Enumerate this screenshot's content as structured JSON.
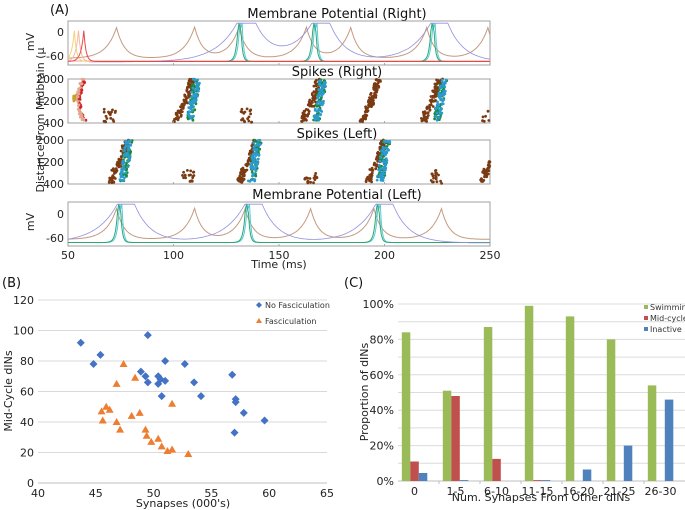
{
  "panel_labels": {
    "a": "(A)",
    "b": "(B)",
    "c": "(C)"
  },
  "chart_data": [
    {
      "id": "A",
      "type": "line",
      "subplots": [
        {
          "title": "Membrane Potential (Right)",
          "ylabel": "mV",
          "yticks": [
            "0",
            "-60"
          ],
          "ylim": [
            -70,
            30
          ]
        },
        {
          "title": "Spikes (Right)",
          "type": "scatter",
          "yticks": [
            "2000",
            "1200",
            "400"
          ],
          "ylim": [
            400,
            2000
          ]
        },
        {
          "title": "Spikes (Left)",
          "type": "scatter",
          "yticks": [
            "2000",
            "1200",
            "400"
          ],
          "ylim": [
            400,
            2000
          ]
        },
        {
          "title": "Membrane Potential (Left)",
          "ylabel": "mV",
          "yticks": [
            "0",
            "-60"
          ],
          "ylim": [
            -70,
            30
          ]
        }
      ],
      "shared_ylabel": "Distance From Midbrain (μ",
      "xlabel": "Time (ms)",
      "xticks": [
        "50",
        "100",
        "150",
        "200",
        "250"
      ],
      "xlim": [
        50,
        250
      ],
      "right_mp": {
        "brown_peaks": [
          73,
          110,
          131,
          163,
          184,
          220,
          249
        ],
        "cyan_peaks": [
          131.5,
          132.5,
          167,
          168,
          223,
          224
        ],
        "init_peaks": [
          [
            53,
            "#f6d27a"
          ],
          [
            55,
            "#f5b8a0"
          ],
          [
            57.5,
            "#e8474a"
          ]
        ]
      },
      "left_mp": {
        "brown_peaks": [
          73,
          110,
          134,
          165,
          195,
          227
        ],
        "cyan_peaks": [
          74.5,
          75.5,
          135,
          136,
          197,
          198
        ]
      },
      "right_spikes_bursts": [
        {
          "t": 58,
          "color": "#d42020",
          "kind": "arc"
        },
        {
          "t": 57,
          "color": "#e0a890",
          "kind": "arc"
        },
        {
          "t": 53,
          "color": "#c9a030",
          "kind": "blob"
        },
        {
          "t": 70,
          "color": "#7a3a12",
          "kind": "low"
        },
        {
          "t": 103,
          "color": "#7a3a12",
          "kind": "sweep"
        },
        {
          "t": 108,
          "color": "#1a8a3a",
          "kind": "cluster"
        },
        {
          "t": 108,
          "color": "#2a9ad0",
          "kind": "cluster"
        },
        {
          "t": 135,
          "color": "#7a3a12",
          "kind": "low"
        },
        {
          "t": 163,
          "color": "#7a3a12",
          "kind": "sweep"
        },
        {
          "t": 168,
          "color": "#1a8a3a",
          "kind": "cluster"
        },
        {
          "t": 168,
          "color": "#2a9ad0",
          "kind": "cluster"
        },
        {
          "t": 191,
          "color": "#7a3a12",
          "kind": "sweep"
        },
        {
          "t": 220,
          "color": "#7a3a12",
          "kind": "sweep"
        },
        {
          "t": 225,
          "color": "#1a8a3a",
          "kind": "cluster"
        },
        {
          "t": 225,
          "color": "#2a9ad0",
          "kind": "cluster"
        },
        {
          "t": 249,
          "color": "#7a3a12",
          "kind": "low"
        }
      ],
      "left_spikes_bursts": [
        {
          "t": 72,
          "color": "#7a3a12",
          "kind": "sweep"
        },
        {
          "t": 76,
          "color": "#1a8a3a",
          "kind": "cluster"
        },
        {
          "t": 76,
          "color": "#2a9ad0",
          "kind": "cluster"
        },
        {
          "t": 107,
          "color": "#7a3a12",
          "kind": "low"
        },
        {
          "t": 133,
          "color": "#7a3a12",
          "kind": "sweep"
        },
        {
          "t": 137,
          "color": "#1a8a3a",
          "kind": "cluster"
        },
        {
          "t": 137,
          "color": "#2a9ad0",
          "kind": "cluster"
        },
        {
          "t": 165,
          "color": "#7a3a12",
          "kind": "low"
        },
        {
          "t": 194,
          "color": "#7a3a12",
          "kind": "sweep"
        },
        {
          "t": 198,
          "color": "#1a8a3a",
          "kind": "cluster"
        },
        {
          "t": 198,
          "color": "#2a9ad0",
          "kind": "cluster"
        },
        {
          "t": 225,
          "color": "#7a3a12",
          "kind": "low"
        },
        {
          "t": 248,
          "color": "#7a3a12",
          "kind": "sweep"
        }
      ]
    },
    {
      "id": "B",
      "type": "scatter",
      "title": "",
      "xlabel": "Synapses (000's)",
      "ylabel": "Mid-Cycle dINs",
      "xlim": [
        40,
        65
      ],
      "ylim": [
        0,
        120
      ],
      "xticks": [
        40,
        45,
        50,
        55,
        60,
        65
      ],
      "yticks": [
        0,
        20,
        40,
        60,
        80,
        100,
        120
      ],
      "grid": true,
      "legend": "top-right",
      "series": [
        {
          "name": "No Fasciculation",
          "marker": "diamond",
          "color": "#4472c4",
          "points": [
            [
              43.7,
              92
            ],
            [
              44.8,
              78
            ],
            [
              45.4,
              84
            ],
            [
              48.9,
              73
            ],
            [
              49.3,
              70
            ],
            [
              49.5,
              66
            ],
            [
              49.5,
              97
            ],
            [
              50.4,
              65
            ],
            [
              50.4,
              70
            ],
            [
              50.6,
              68
            ],
            [
              50.7,
              57
            ],
            [
              51.0,
              67
            ],
            [
              51.0,
              80
            ],
            [
              52.7,
              78
            ],
            [
              53.5,
              66
            ],
            [
              54.1,
              57
            ],
            [
              56.8,
              71
            ],
            [
              57.0,
              33
            ],
            [
              57.1,
              55
            ],
            [
              57.1,
              53
            ],
            [
              57.8,
              46
            ],
            [
              59.6,
              41
            ]
          ]
        },
        {
          "name": "Fasciculation",
          "marker": "triangle",
          "color": "#ed7d31",
          "points": [
            [
              45.5,
              47
            ],
            [
              45.6,
              41
            ],
            [
              45.9,
              50
            ],
            [
              46.2,
              48
            ],
            [
              46.8,
              65
            ],
            [
              46.8,
              40
            ],
            [
              47.1,
              35
            ],
            [
              47.4,
              78
            ],
            [
              48.1,
              44
            ],
            [
              48.4,
              69
            ],
            [
              48.8,
              46
            ],
            [
              49.3,
              35
            ],
            [
              49.4,
              31
            ],
            [
              49.8,
              27
            ],
            [
              50.4,
              29
            ],
            [
              50.7,
              24
            ],
            [
              51.2,
              21
            ],
            [
              51.6,
              22
            ],
            [
              51.6,
              52
            ],
            [
              53.0,
              19
            ]
          ]
        }
      ]
    },
    {
      "id": "C",
      "type": "bar",
      "xlabel": "Num. Synapses From Other dINs",
      "ylabel": "Proportion of dINs",
      "categories": [
        "0",
        "1-5",
        "6-10",
        "11-15",
        "16-20",
        "21-25",
        "26-30"
      ],
      "ylim": [
        0,
        100
      ],
      "yticks": [
        "0%",
        "20%",
        "40%",
        "60%",
        "80%",
        "100%"
      ],
      "grid": true,
      "legend": "top-right",
      "series": [
        {
          "name": "Swimming",
          "color": "#9bbb59",
          "values": [
            84,
            51,
            87,
            99,
            93,
            80,
            54
          ]
        },
        {
          "name": "Mid-cycle",
          "color": "#c0504d",
          "values": [
            11,
            48,
            12.5,
            0.5,
            0,
            0,
            0
          ]
        },
        {
          "name": "Inactive",
          "color": "#4f81bd",
          "values": [
            4.5,
            0.5,
            0,
            0.5,
            6.5,
            20,
            46
          ]
        }
      ]
    }
  ]
}
